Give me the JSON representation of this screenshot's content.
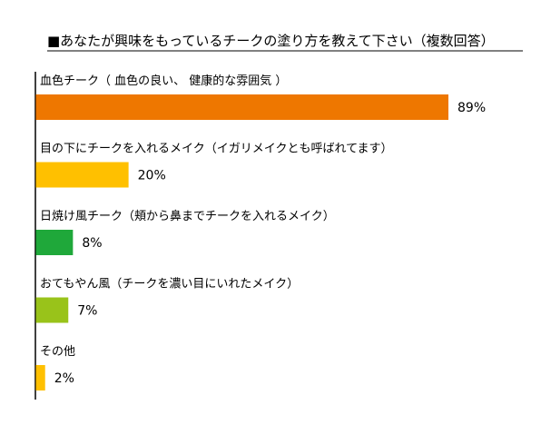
{
  "chart_data": {
    "type": "bar",
    "orientation": "horizontal",
    "title": "■あなたが興味をもっているチークの塗り方を教えて下さい（複数回答）",
    "value_format": "percent",
    "xlim": [
      0,
      100
    ],
    "grid": false,
    "legend": "none",
    "categories": [
      "血色チーク（ 血色の良い、 健康的な雰囲気 ）",
      "目の下にチークを入れるメイク（イガリメイクとも呼ばれてます）",
      "日焼け風チーク（頬から鼻までチークを入れるメイク）",
      "おてもやん風（チークを濃い目にいれたメイク）",
      "その他"
    ],
    "values": [
      89,
      20,
      8,
      7,
      2
    ],
    "value_labels": [
      "89%",
      "20%",
      "8%",
      "7%",
      "2%"
    ],
    "colors": [
      "#EE7700",
      "#FFC000",
      "#1FA83A",
      "#99C31A",
      "#FFC000"
    ]
  }
}
